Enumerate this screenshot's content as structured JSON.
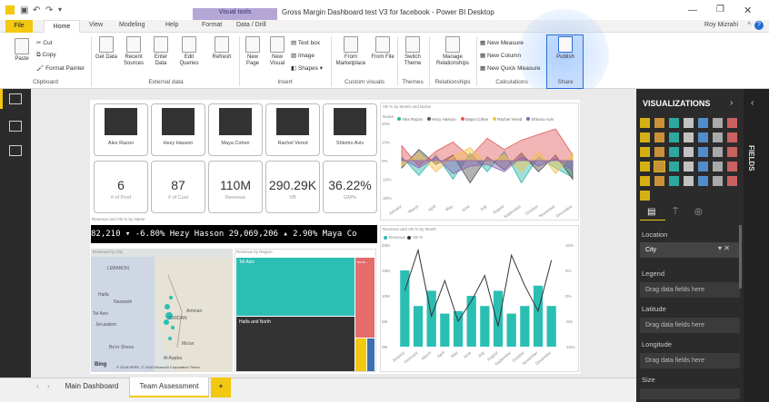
{
  "titlebar": {
    "context_tab": "Visual tools",
    "title": "Gross Margin Dashboard test V3 for facebook - Power BI Desktop"
  },
  "tabs": {
    "file": "File",
    "home": "Home",
    "view": "View",
    "modeling": "Modeling",
    "help": "Help",
    "format": "Format",
    "data_drill": "Data / Drill"
  },
  "user": {
    "name": "Roy Mizrahi"
  },
  "ribbon": {
    "clipboard": {
      "paste": "Paste",
      "cut": "Cut",
      "copy": "Copy",
      "format_painter": "Format Painter",
      "group": "Clipboard"
    },
    "external": {
      "get_data": "Get Data",
      "recent_sources": "Recent Sources",
      "enter_data": "Enter Data",
      "edit_queries": "Edit Queries",
      "refresh": "Refresh",
      "group": "External data"
    },
    "insert": {
      "new_page": "New Page",
      "new_visual": "New Visual",
      "text_box": "Text box",
      "image": "Image",
      "shapes": "Shapes",
      "group": "Insert"
    },
    "custom": {
      "from_marketplace": "From Marketplace",
      "from_file": "From File",
      "group": "Custom visuals"
    },
    "themes": {
      "switch_theme": "Switch Theme",
      "group": "Themes"
    },
    "relationships": {
      "manage": "Manage Relationships",
      "group": "Relationships"
    },
    "calculations": {
      "new_measure": "New Measure",
      "new_column": "New Column",
      "new_quick_measure": "New Quick Measure",
      "group": "Calculations"
    },
    "share": {
      "publish": "Publish",
      "group": "Share"
    }
  },
  "people": [
    {
      "name": "Alex Razon"
    },
    {
      "name": "Hezy Hasson"
    },
    {
      "name": "Maya Cohen"
    },
    {
      "name": "Rachel Vered"
    },
    {
      "name": "Shlomo Aviv"
    }
  ],
  "kpis": [
    {
      "value": "6",
      "label": "# of Prod"
    },
    {
      "value": "87",
      "label": "# of Cust"
    },
    {
      "value": "110M",
      "label": "Revenue"
    },
    {
      "value": "290.29K",
      "label": "VB"
    },
    {
      "value": "36.22%",
      "label": "GM%"
    }
  ],
  "area_chart": {
    "title": "VB % by Month and Name",
    "legend_label": "Name",
    "months": [
      "January",
      "March",
      "April",
      "May",
      "June",
      "July",
      "August",
      "September",
      "October",
      "November",
      "December"
    ],
    "y_ticks": [
      "20%",
      "15%",
      "10%",
      "5%",
      "0%",
      "-5%",
      "-10%",
      "-15%",
      "-20%"
    ]
  },
  "ticker": {
    "caption": "Revenue and VB % by Name",
    "text": "82,210 ▾ -6.80%     Hezy Hasson 29,069,206 ▴ 2.90%     Maya Co"
  },
  "map": {
    "title": "Revenue by City",
    "labels": [
      "LEBANON",
      "Haifa",
      "Nazareth",
      "Tel Aviv",
      "Jerusalem",
      "JORDAN",
      "Amman",
      "Ma'an",
      "Al Aqaba",
      "Be'er Sheva",
      "Bing"
    ],
    "copyright": "© 2018 HERE, © 2018 Microsoft Corporation Terms"
  },
  "treemap": {
    "title": "Revenue by Region",
    "regions": [
      "Tel Aviv",
      "Haifa and North",
      "Jerus..."
    ]
  },
  "combo_chart": {
    "title": "Revenue and VB % by Month",
    "legend": [
      "Revenue",
      "VB %"
    ],
    "y_left": [
      "20M",
      "15M",
      "10M",
      "5M",
      "0M"
    ],
    "y_right": [
      "10%",
      "5%",
      "0%",
      "-5%",
      "-10%"
    ]
  },
  "chart_data": [
    {
      "type": "area",
      "title": "VB % by Month and Name",
      "xlabel": "",
      "ylabel": "",
      "ylim": [
        -20,
        20
      ],
      "categories": [
        "January",
        "March",
        "April",
        "May",
        "June",
        "July",
        "August",
        "September",
        "October",
        "November",
        "December"
      ],
      "series": [
        {
          "name": "Alex Razon",
          "color": "#2fb8a8",
          "values": [
            2,
            -8,
            3,
            -10,
            4,
            -6,
            5,
            -12,
            2,
            -4,
            -9
          ]
        },
        {
          "name": "Hezy Hasson",
          "color": "#555555",
          "values": [
            -4,
            6,
            -2,
            3,
            -12,
            2,
            -5,
            4,
            -6,
            3,
            -10
          ]
        },
        {
          "name": "Maya Cohen",
          "color": "#e05a5a",
          "values": [
            8,
            -3,
            5,
            10,
            2,
            12,
            6,
            11,
            14,
            17,
            3
          ]
        },
        {
          "name": "Rachel Vered",
          "color": "#f2c14e",
          "values": [
            -3,
            4,
            -6,
            2,
            7,
            -2,
            3,
            -6,
            5,
            -7,
            4
          ]
        },
        {
          "name": "Shlomo Aviv",
          "color": "#8a63b3",
          "values": [
            1,
            -4,
            2,
            -7,
            -3,
            -2,
            -6,
            2,
            -3,
            1,
            -5
          ]
        }
      ]
    },
    {
      "type": "bar",
      "title": "Revenue and VB % by Month",
      "xlabel": "",
      "ylabel": "",
      "categories": [
        "January",
        "February",
        "March",
        "April",
        "May",
        "June",
        "July",
        "August",
        "September",
        "October",
        "November",
        "December"
      ],
      "series": [
        {
          "name": "Revenue",
          "color": "#2bbfb3",
          "values": [
            15,
            8,
            11,
            6.5,
            7,
            10,
            8,
            11,
            6.5,
            8,
            12,
            8
          ]
        },
        {
          "name": "VB %",
          "color": "#333333",
          "values": [
            1,
            9,
            -4,
            3,
            -5,
            -1,
            4,
            -6,
            8,
            2,
            -3,
            7
          ]
        }
      ],
      "ylim_left": [
        0,
        20
      ],
      "ylim_right": [
        -10,
        10
      ]
    }
  ],
  "bottom_tabs": {
    "main": "Main Dashboard",
    "team": "Team Assessment",
    "add": "+"
  },
  "viz_pane": {
    "title": "VISUALIZATIONS",
    "fields_title": "FIELDS",
    "wells": [
      {
        "label": "Location",
        "value": "City"
      },
      {
        "label": "Legend",
        "value": "Drag data fields here"
      },
      {
        "label": "Latitude",
        "value": "Drag data fields here"
      },
      {
        "label": "Longitude",
        "value": "Drag data fields here"
      },
      {
        "label": "Size",
        "value": ""
      }
    ]
  },
  "colors": {
    "accent": "#f2c811",
    "publish_highlight": "#2b6cd4",
    "teal": "#2bbfb3"
  }
}
